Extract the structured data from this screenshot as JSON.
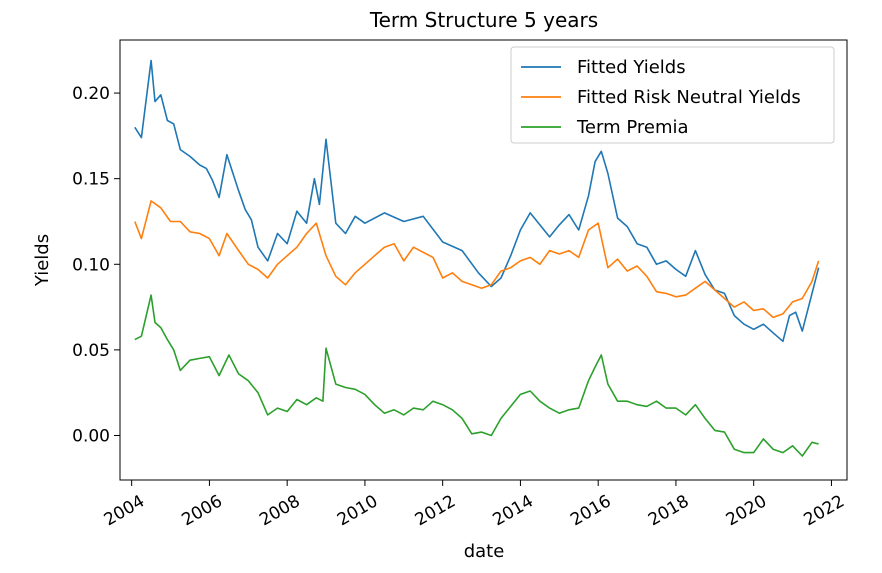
{
  "chart_data": {
    "type": "line",
    "title": "Term Structure 5 years",
    "xlabel": "date",
    "ylabel": "Yields",
    "xlim": [
      2003.7,
      2022.4
    ],
    "ylim": [
      -0.026,
      0.231
    ],
    "x_ticks": [
      "2004",
      "2006",
      "2008",
      "2010",
      "2012",
      "2014",
      "2016",
      "2018",
      "2020",
      "2022"
    ],
    "y_ticks": [
      "0.00",
      "0.05",
      "0.10",
      "0.15",
      "0.20"
    ],
    "grid": false,
    "legend_position": "top-right",
    "series": [
      {
        "name": "Fitted Yields",
        "color": "#1f77b4",
        "x": [
          2004.08,
          2004.25,
          2004.5,
          2004.6,
          2004.75,
          2004.92,
          2005.08,
          2005.25,
          2005.5,
          2005.75,
          2005.92,
          2006.08,
          2006.25,
          2006.45,
          2006.75,
          2006.92,
          2007.08,
          2007.25,
          2007.5,
          2007.75,
          2008.0,
          2008.25,
          2008.5,
          2008.7,
          2008.83,
          2009.0,
          2009.25,
          2009.5,
          2009.75,
          2010.0,
          2010.5,
          2011.0,
          2011.5,
          2012.0,
          2012.5,
          2012.92,
          2013.25,
          2013.5,
          2013.75,
          2014.0,
          2014.25,
          2014.5,
          2014.75,
          2015.0,
          2015.25,
          2015.5,
          2015.75,
          2015.92,
          2016.08,
          2016.25,
          2016.5,
          2016.75,
          2017.0,
          2017.25,
          2017.5,
          2017.75,
          2018.0,
          2018.25,
          2018.5,
          2018.75,
          2019.0,
          2019.25,
          2019.5,
          2019.75,
          2020.0,
          2020.25,
          2020.5,
          2020.75,
          2020.92,
          2021.08,
          2021.25,
          2021.5,
          2021.67
        ],
        "values": [
          0.18,
          0.174,
          0.219,
          0.195,
          0.199,
          0.184,
          0.182,
          0.167,
          0.163,
          0.158,
          0.156,
          0.149,
          0.139,
          0.164,
          0.143,
          0.132,
          0.126,
          0.11,
          0.102,
          0.118,
          0.112,
          0.131,
          0.124,
          0.15,
          0.135,
          0.173,
          0.124,
          0.118,
          0.128,
          0.124,
          0.13,
          0.125,
          0.128,
          0.113,
          0.108,
          0.095,
          0.087,
          0.092,
          0.105,
          0.12,
          0.13,
          0.123,
          0.116,
          0.123,
          0.129,
          0.12,
          0.14,
          0.16,
          0.166,
          0.153,
          0.127,
          0.122,
          0.112,
          0.11,
          0.1,
          0.102,
          0.097,
          0.093,
          0.108,
          0.094,
          0.085,
          0.083,
          0.07,
          0.065,
          0.062,
          0.065,
          0.06,
          0.055,
          0.07,
          0.072,
          0.061,
          0.083,
          0.098
        ]
      },
      {
        "name": "Fitted Risk Neutral Yields",
        "color": "#ff7f0e",
        "x": [
          2004.08,
          2004.25,
          2004.5,
          2004.75,
          2005.0,
          2005.25,
          2005.5,
          2005.75,
          2006.0,
          2006.25,
          2006.45,
          2006.75,
          2007.0,
          2007.25,
          2007.5,
          2007.75,
          2008.0,
          2008.25,
          2008.5,
          2008.75,
          2009.0,
          2009.25,
          2009.5,
          2009.75,
          2010.0,
          2010.25,
          2010.5,
          2010.75,
          2011.0,
          2011.25,
          2011.5,
          2011.75,
          2012.0,
          2012.25,
          2012.5,
          2012.75,
          2013.0,
          2013.25,
          2013.5,
          2013.75,
          2014.0,
          2014.25,
          2014.5,
          2014.75,
          2015.0,
          2015.25,
          2015.5,
          2015.75,
          2016.0,
          2016.25,
          2016.5,
          2016.75,
          2017.0,
          2017.25,
          2017.5,
          2017.75,
          2018.0,
          2018.25,
          2018.5,
          2018.75,
          2019.0,
          2019.25,
          2019.5,
          2019.75,
          2020.0,
          2020.25,
          2020.5,
          2020.75,
          2021.0,
          2021.25,
          2021.5,
          2021.67
        ],
        "values": [
          0.125,
          0.115,
          0.137,
          0.133,
          0.125,
          0.125,
          0.119,
          0.118,
          0.115,
          0.105,
          0.118,
          0.108,
          0.1,
          0.097,
          0.092,
          0.1,
          0.105,
          0.11,
          0.118,
          0.124,
          0.105,
          0.093,
          0.088,
          0.095,
          0.1,
          0.105,
          0.11,
          0.112,
          0.102,
          0.11,
          0.107,
          0.104,
          0.092,
          0.095,
          0.09,
          0.088,
          0.086,
          0.088,
          0.096,
          0.098,
          0.102,
          0.104,
          0.1,
          0.108,
          0.106,
          0.108,
          0.104,
          0.12,
          0.124,
          0.098,
          0.103,
          0.096,
          0.099,
          0.093,
          0.084,
          0.083,
          0.081,
          0.082,
          0.086,
          0.09,
          0.085,
          0.08,
          0.075,
          0.078,
          0.073,
          0.074,
          0.069,
          0.071,
          0.078,
          0.08,
          0.09,
          0.102
        ]
      },
      {
        "name": "Term Premia",
        "color": "#2ca02c",
        "x": [
          2004.08,
          2004.25,
          2004.5,
          2004.6,
          2004.75,
          2004.92,
          2005.08,
          2005.25,
          2005.5,
          2005.75,
          2006.0,
          2006.25,
          2006.5,
          2006.75,
          2007.0,
          2007.25,
          2007.5,
          2007.75,
          2008.0,
          2008.25,
          2008.5,
          2008.75,
          2008.92,
          2009.0,
          2009.25,
          2009.5,
          2009.75,
          2010.0,
          2010.25,
          2010.5,
          2010.75,
          2011.0,
          2011.25,
          2011.5,
          2011.75,
          2012.0,
          2012.25,
          2012.5,
          2012.75,
          2013.0,
          2013.25,
          2013.5,
          2013.75,
          2014.0,
          2014.25,
          2014.5,
          2014.75,
          2015.0,
          2015.25,
          2015.5,
          2015.75,
          2015.92,
          2016.08,
          2016.25,
          2016.5,
          2016.75,
          2017.0,
          2017.25,
          2017.5,
          2017.75,
          2018.0,
          2018.25,
          2018.5,
          2018.75,
          2019.0,
          2019.25,
          2019.5,
          2019.75,
          2020.0,
          2020.25,
          2020.5,
          2020.75,
          2021.0,
          2021.25,
          2021.5,
          2021.67
        ],
        "values": [
          0.056,
          0.058,
          0.082,
          0.066,
          0.063,
          0.056,
          0.05,
          0.038,
          0.044,
          0.045,
          0.046,
          0.035,
          0.047,
          0.036,
          0.032,
          0.025,
          0.012,
          0.016,
          0.014,
          0.021,
          0.018,
          0.022,
          0.02,
          0.051,
          0.03,
          0.028,
          0.027,
          0.024,
          0.018,
          0.013,
          0.015,
          0.012,
          0.016,
          0.015,
          0.02,
          0.018,
          0.015,
          0.01,
          0.001,
          0.002,
          0.0,
          0.01,
          0.017,
          0.024,
          0.026,
          0.02,
          0.016,
          0.013,
          0.015,
          0.016,
          0.032,
          0.04,
          0.047,
          0.03,
          0.02,
          0.02,
          0.018,
          0.017,
          0.02,
          0.016,
          0.016,
          0.012,
          0.018,
          0.01,
          0.003,
          0.002,
          -0.008,
          -0.01,
          -0.01,
          -0.002,
          -0.008,
          -0.01,
          -0.006,
          -0.012,
          -0.004,
          -0.005
        ]
      }
    ]
  }
}
